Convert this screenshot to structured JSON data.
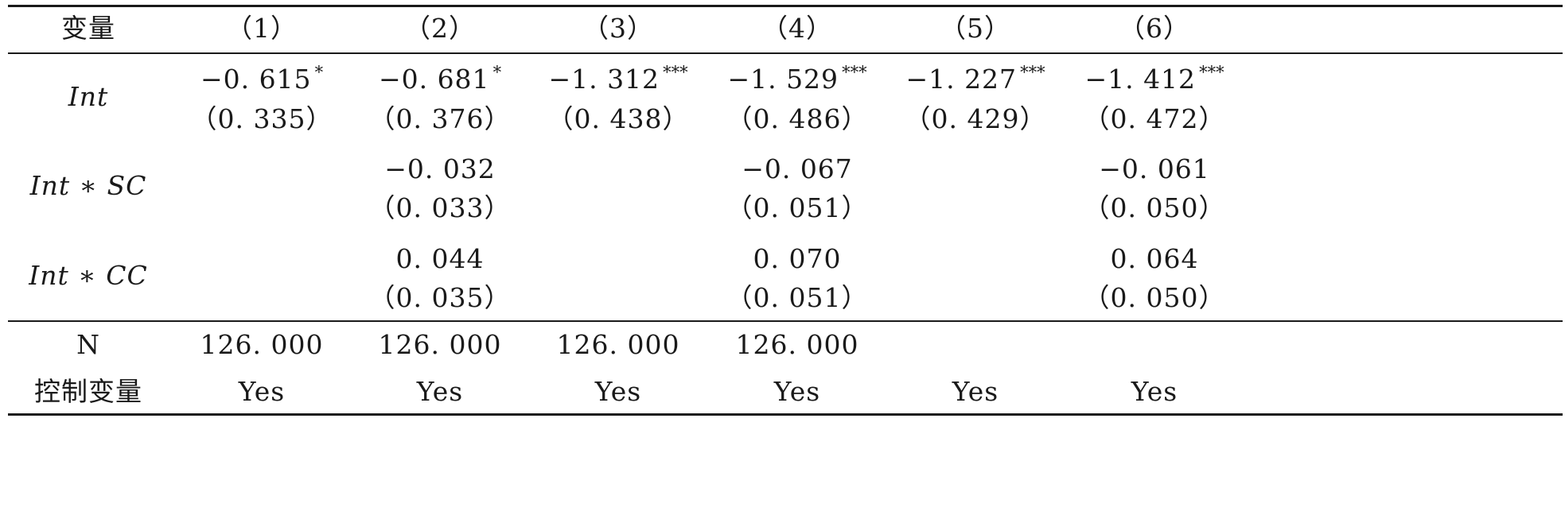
{
  "table": {
    "header": {
      "variable_label": "变量",
      "columns": [
        "（1）",
        "（2）",
        "（3）",
        "（4）",
        "（5）",
        "（6）"
      ]
    },
    "rows": [
      {
        "label": "Int",
        "coef": [
          "−0. 615",
          "−0. 681",
          "−1. 312",
          "−1. 529",
          "−1. 227",
          "−1. 412"
        ],
        "stars": [
          "*",
          "*",
          "***",
          "***",
          "***",
          "***"
        ],
        "se": [
          "（0. 335）",
          "（0. 376）",
          "（0. 438）",
          "（0. 486）",
          "（0. 429）",
          "（0. 472）"
        ]
      },
      {
        "label": "Int ∗ SC",
        "coef": [
          "",
          "−0. 032",
          "",
          "−0. 067",
          "",
          "−0. 061"
        ],
        "stars": [
          "",
          "",
          "",
          "",
          "",
          ""
        ],
        "se": [
          "",
          "（0. 033）",
          "",
          "（0. 051）",
          "",
          "（0. 050）"
        ]
      },
      {
        "label": "Int ∗ CC",
        "coef": [
          "",
          "0. 044",
          "",
          "0. 070",
          "",
          "0. 064"
        ],
        "stars": [
          "",
          "",
          "",
          "",
          "",
          ""
        ],
        "se": [
          "",
          "（0. 035）",
          "",
          "（0. 051）",
          "",
          "（0. 050）"
        ]
      }
    ],
    "footer": [
      {
        "label": "N",
        "values": [
          "126. 000",
          "126. 000",
          "126. 000",
          "126. 000",
          "",
          ""
        ]
      },
      {
        "label": "控制变量",
        "values": [
          "Yes",
          "Yes",
          "Yes",
          "Yes",
          "Yes",
          "Yes"
        ]
      }
    ]
  }
}
